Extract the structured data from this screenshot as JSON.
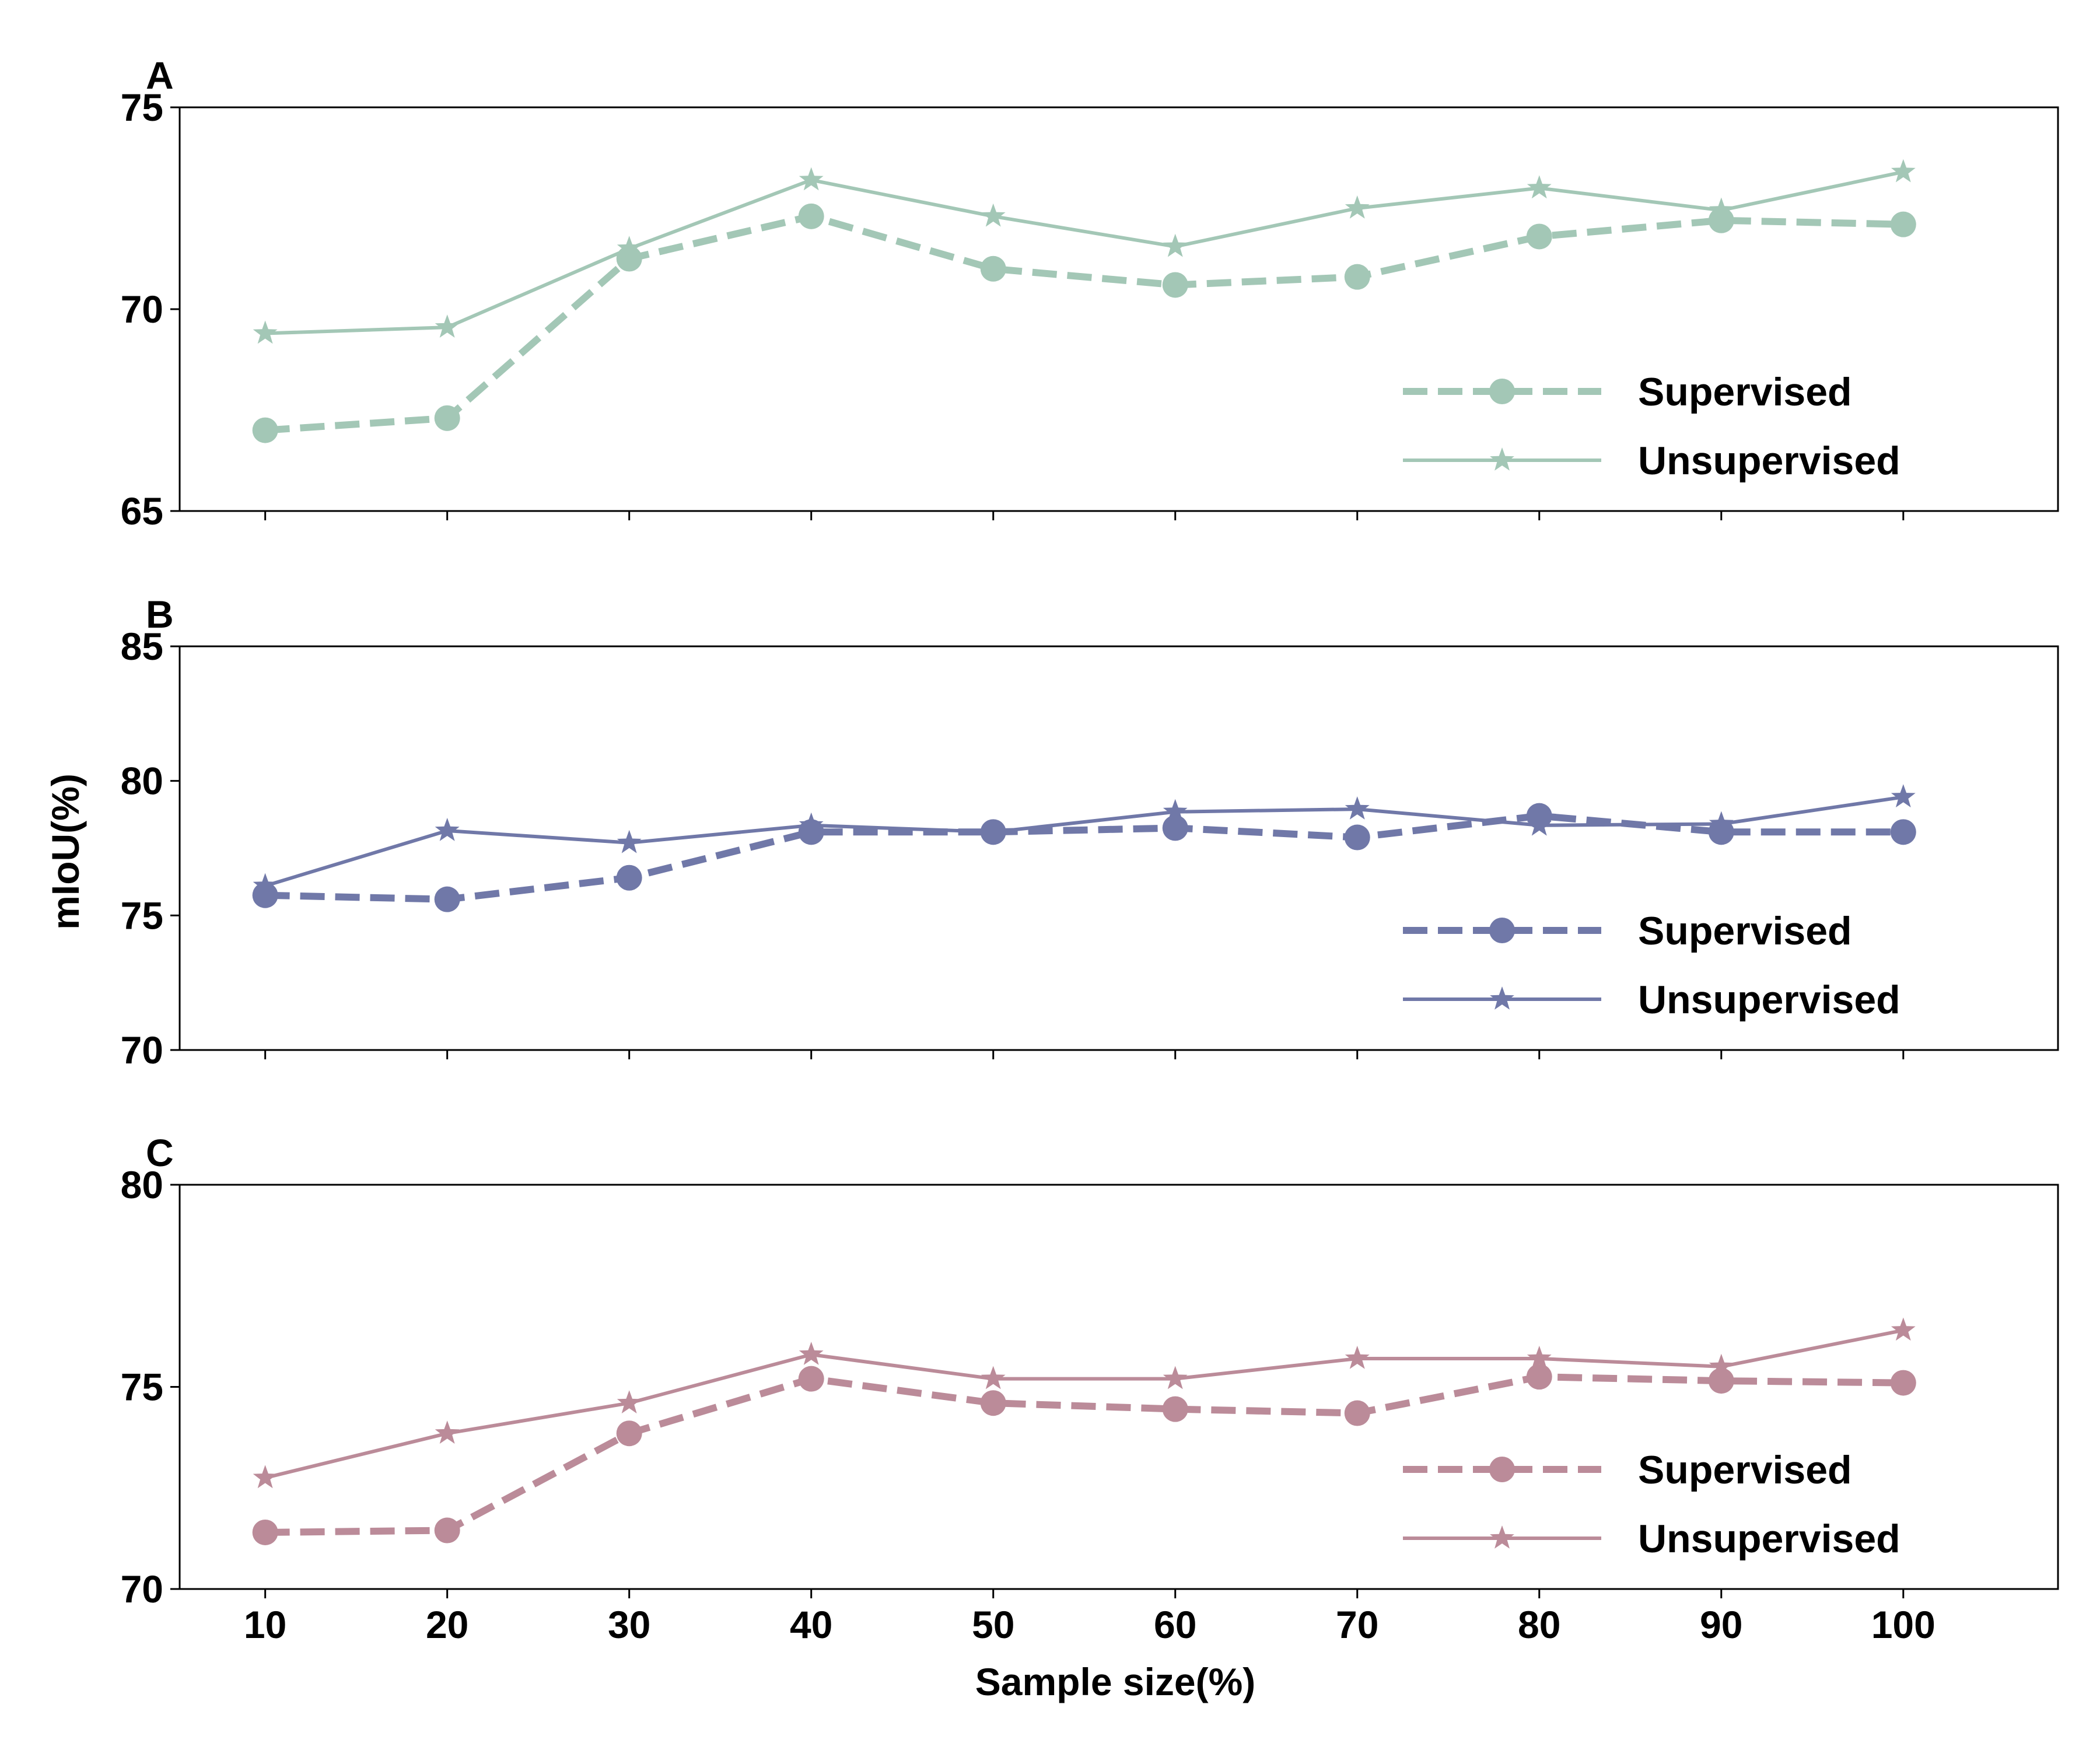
{
  "figure": {
    "ylabel": "mIoU(%)",
    "xlabel": "Sample size(%)"
  },
  "chart_data": [
    {
      "type": "line",
      "panel": "A",
      "x": [
        10,
        20,
        30,
        40,
        50,
        60,
        70,
        80,
        90,
        100
      ],
      "xticks": [
        "10",
        "20",
        "30",
        "40",
        "50",
        "60",
        "70",
        "80",
        "90",
        "100"
      ],
      "ylim": [
        65,
        75
      ],
      "yticks": [
        "65",
        "70",
        "75"
      ],
      "color": "#a3c7b6",
      "legend_placement": "lower right",
      "series": [
        {
          "name": "Supervised",
          "style": "dashed",
          "marker": "circle",
          "values": [
            67.0,
            67.3,
            71.25,
            72.3,
            71.0,
            70.6,
            70.8,
            71.8,
            72.2,
            72.1
          ]
        },
        {
          "name": "Unsupervised",
          "style": "solid",
          "marker": "star",
          "values": [
            69.4,
            69.55,
            71.5,
            73.2,
            72.3,
            71.55,
            72.5,
            73.0,
            72.45,
            73.4
          ]
        }
      ]
    },
    {
      "type": "line",
      "panel": "B",
      "x": [
        10,
        20,
        30,
        40,
        50,
        60,
        70,
        80,
        90,
        100
      ],
      "xticks": [
        "10",
        "20",
        "30",
        "40",
        "50",
        "60",
        "70",
        "80",
        "90",
        "100"
      ],
      "ylim": [
        70,
        85
      ],
      "yticks": [
        "70",
        "75",
        "80",
        "85"
      ],
      "color": "#7078a8",
      "legend_placement": "lower right",
      "series": [
        {
          "name": "Supervised",
          "style": "dashed",
          "marker": "circle",
          "values": [
            75.75,
            75.6,
            76.4,
            78.1,
            78.1,
            78.25,
            77.9,
            78.7,
            78.1,
            78.1
          ]
        },
        {
          "name": "Unsupervised",
          "style": "solid",
          "marker": "star",
          "values": [
            76.1,
            78.15,
            77.7,
            78.35,
            78.1,
            78.85,
            78.95,
            78.35,
            78.4,
            79.4
          ]
        }
      ]
    },
    {
      "type": "line",
      "panel": "C",
      "x": [
        10,
        20,
        30,
        40,
        50,
        60,
        70,
        80,
        90,
        100
      ],
      "xticks": [
        "10",
        "20",
        "30",
        "40",
        "50",
        "60",
        "70",
        "80",
        "90",
        "100"
      ],
      "ylim": [
        70,
        80
      ],
      "yticks": [
        "70",
        "75",
        "80"
      ],
      "color": "#bb8b99",
      "legend_placement": "lower right",
      "series": [
        {
          "name": "Supervised",
          "style": "dashed",
          "marker": "circle",
          "values": [
            71.4,
            71.45,
            73.85,
            75.2,
            74.6,
            74.45,
            74.35,
            75.25,
            75.15,
            75.1
          ]
        },
        {
          "name": "Unsupervised",
          "style": "solid",
          "marker": "star",
          "values": [
            72.75,
            73.85,
            74.6,
            75.8,
            75.2,
            75.2,
            75.7,
            75.7,
            75.5,
            76.4
          ]
        }
      ]
    }
  ]
}
